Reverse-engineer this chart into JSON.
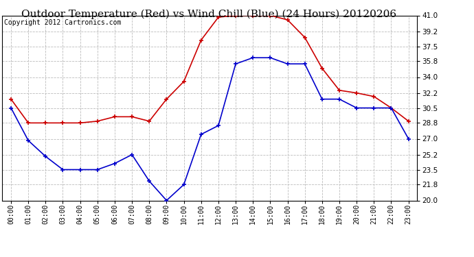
{
  "title": "Outdoor Temperature (Red) vs Wind Chill (Blue) (24 Hours) 20120206",
  "copyright": "Copyright 2012 Cartronics.com",
  "hours": [
    "00:00",
    "01:00",
    "02:00",
    "03:00",
    "04:00",
    "05:00",
    "06:00",
    "07:00",
    "08:00",
    "09:00",
    "10:00",
    "11:00",
    "12:00",
    "13:00",
    "14:00",
    "15:00",
    "16:00",
    "17:00",
    "18:00",
    "19:00",
    "20:00",
    "21:00",
    "22:00",
    "23:00"
  ],
  "red_temp": [
    31.5,
    28.8,
    28.8,
    28.8,
    28.8,
    29.0,
    29.5,
    29.5,
    29.0,
    31.5,
    33.5,
    38.2,
    40.8,
    41.0,
    41.0,
    41.0,
    40.5,
    38.5,
    35.0,
    32.5,
    32.2,
    31.8,
    30.5,
    29.0
  ],
  "blue_wc": [
    30.5,
    26.8,
    25.0,
    23.5,
    23.5,
    23.5,
    24.2,
    25.2,
    22.2,
    20.0,
    21.8,
    27.5,
    28.5,
    35.5,
    36.2,
    36.2,
    35.5,
    35.5,
    31.5,
    31.5,
    30.5,
    30.5,
    30.5,
    27.0
  ],
  "ylim": [
    20.0,
    41.0
  ],
  "yticks": [
    20.0,
    21.8,
    23.5,
    25.2,
    27.0,
    28.8,
    30.5,
    32.2,
    34.0,
    35.8,
    37.5,
    39.2,
    41.0
  ],
  "red_color": "#cc0000",
  "blue_color": "#0000cc",
  "plot_bg_color": "#ffffff",
  "fig_bg_color": "#ffffff",
  "grid_color": "#bbbbbb",
  "title_fontsize": 11,
  "copyright_fontsize": 7,
  "tick_fontsize": 7,
  "ytick_fontsize": 7.5
}
